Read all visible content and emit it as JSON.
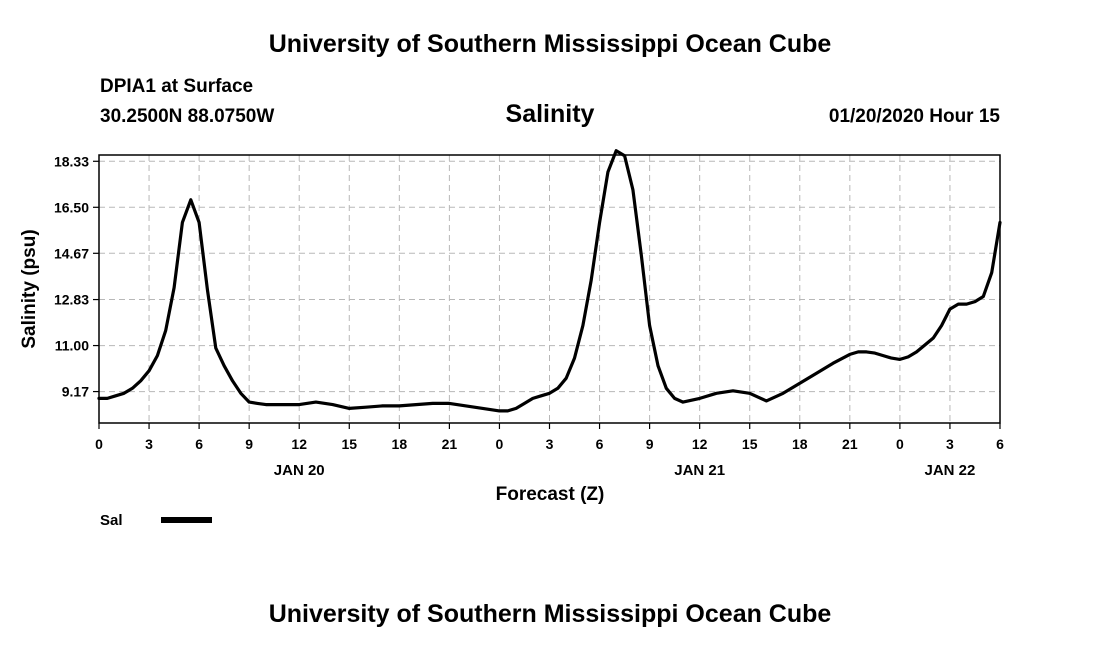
{
  "header": {
    "title": "University of Southern Mississippi Ocean Cube",
    "station": "DPIA1 at Surface",
    "coords": "30.2500N 88.0750W",
    "timestamp": "01/20/2020 Hour 15"
  },
  "footer": {
    "title": "University of Southern Mississippi Ocean Cube"
  },
  "chart_data": {
    "type": "line",
    "title": "Salinity",
    "xlabel": "Forecast (Z)",
    "ylabel": "Salinity (psu)",
    "xlim": [
      0,
      54
    ],
    "ylim": [
      7.92,
      18.58
    ],
    "y_ticks": [
      "9.17",
      "11.00",
      "12.83",
      "14.67",
      "16.50",
      "18.33"
    ],
    "x_tick_labels": [
      "0",
      "3",
      "6",
      "9",
      "12",
      "15",
      "18",
      "21",
      "0",
      "3",
      "6",
      "9",
      "12",
      "15",
      "18",
      "21",
      "0",
      "3",
      "6"
    ],
    "x_ticks_hours": [
      0,
      3,
      6,
      9,
      12,
      15,
      18,
      21,
      24,
      27,
      30,
      33,
      36,
      39,
      42,
      45,
      48,
      51,
      54
    ],
    "date_labels": [
      {
        "label": "JAN 20",
        "at_hour": 12
      },
      {
        "label": "JAN 21",
        "at_hour": 36
      },
      {
        "label": "JAN 22",
        "at_hour": 51
      }
    ],
    "grid": true,
    "legend": "bottom-left",
    "color": "#000000",
    "series": [
      {
        "name": "Sal",
        "x": [
          0,
          0.5,
          1,
          1.5,
          2,
          2.5,
          3,
          3.5,
          4,
          4.5,
          5,
          5.5,
          6,
          6.5,
          7,
          7.5,
          8,
          8.5,
          9,
          9.5,
          10,
          11,
          12,
          13,
          14,
          15,
          16,
          17,
          18,
          19,
          20,
          21,
          22,
          23,
          24,
          24.5,
          25,
          25.5,
          26,
          26.5,
          27,
          27.5,
          28,
          28.5,
          29,
          29.5,
          30,
          30.5,
          31,
          31.5,
          32,
          32.5,
          33,
          33.5,
          34,
          34.5,
          35,
          36,
          37,
          38,
          39,
          40,
          41,
          42,
          43,
          44,
          45,
          45.5,
          46,
          46.5,
          47,
          47.5,
          48,
          48.5,
          49,
          50,
          50.5,
          51,
          51.5,
          52,
          52.5,
          53,
          53.5,
          54
        ],
        "y": [
          8.9,
          8.9,
          9.0,
          9.1,
          9.3,
          9.6,
          10.0,
          10.6,
          11.6,
          13.3,
          15.9,
          16.8,
          15.9,
          13.2,
          10.9,
          10.2,
          9.6,
          9.1,
          8.75,
          8.7,
          8.65,
          8.65,
          8.65,
          8.75,
          8.65,
          8.5,
          8.55,
          8.6,
          8.6,
          8.65,
          8.7,
          8.7,
          8.6,
          8.5,
          8.4,
          8.4,
          8.5,
          8.7,
          8.9,
          9.0,
          9.1,
          9.3,
          9.7,
          10.5,
          11.8,
          13.6,
          15.9,
          17.9,
          18.75,
          18.55,
          17.2,
          14.6,
          11.8,
          10.2,
          9.3,
          8.9,
          8.75,
          8.9,
          9.1,
          9.2,
          9.1,
          8.8,
          9.1,
          9.5,
          9.9,
          10.3,
          10.65,
          10.75,
          10.75,
          10.7,
          10.6,
          10.5,
          10.45,
          10.55,
          10.75,
          11.3,
          11.8,
          12.45,
          12.65,
          12.65,
          12.75,
          12.95,
          13.9,
          15.9
        ]
      }
    ]
  }
}
